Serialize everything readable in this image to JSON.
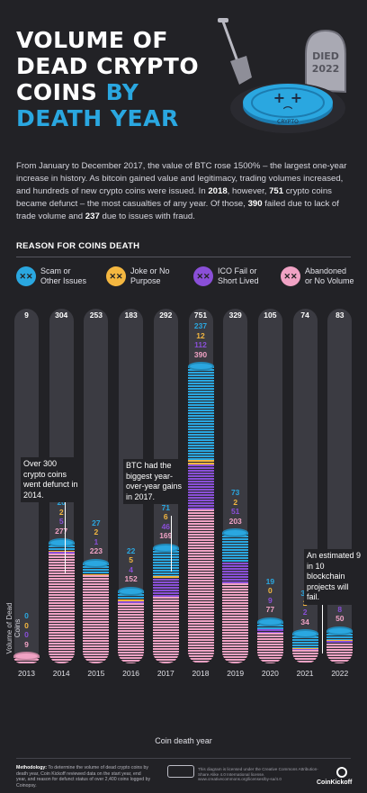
{
  "title": {
    "line1": "VOLUME OF",
    "line2": "DEAD CRYPTO",
    "line3": "COINS",
    "line3b": "BY",
    "line4": "DEATH YEAR"
  },
  "illustration": {
    "tombstone_text1": "DIED",
    "tombstone_text2": "2022",
    "coin_label": "CRYPTO"
  },
  "intro": {
    "p1": "From January to December 2017, the value of BTC rose 1500% – the largest one-year increase in history. As bitcoin gained value and legitimacy, trading volumes increased, and hundreds of new crypto coins were issued. In ",
    "y2018": "2018",
    "p2": ", however, ",
    "n751": "751",
    "p3": " crypto coins became defunct – the most casualties of any year. Of those, ",
    "n390": "390",
    "p4": " failed due to lack of trade volume and ",
    "n237": "237",
    "p5": " due to issues with fraud."
  },
  "section_title": "REASON FOR COINS DEATH",
  "legend": [
    {
      "label": "Scam or Other Issues",
      "color": "#2aa7e0",
      "icon": "dizzy-face-icon"
    },
    {
      "label": "Joke or No Purpose",
      "color": "#f4b740",
      "icon": "dizzy-face-icon"
    },
    {
      "label": "ICO Fail or Short Lived",
      "color": "#8a4fd8",
      "icon": "dizzy-face-icon"
    },
    {
      "label": "Abandoned or No Volume",
      "color": "#f0a2c4",
      "icon": "dizzy-face-icon"
    }
  ],
  "chart_data": {
    "type": "bar",
    "stacked": true,
    "title": "",
    "xlabel": "Coin death year",
    "ylabel": "Volume of Dead Coins",
    "categories": [
      "2013",
      "2014",
      "2015",
      "2016",
      "2017",
      "2018",
      "2019",
      "2020",
      "2021",
      "2022"
    ],
    "totals": [
      9,
      304,
      253,
      183,
      292,
      751,
      329,
      105,
      74,
      83
    ],
    "series": [
      {
        "name": "Abandoned or No Volume",
        "color": "#f0a2c4",
        "values": [
          9,
          277,
          223,
          152,
          169,
          390,
          203,
          77,
          34,
          50
        ]
      },
      {
        "name": "ICO Fail or Short Lived",
        "color": "#8a4fd8",
        "values": [
          0,
          5,
          1,
          4,
          46,
          112,
          51,
          9,
          2,
          8
        ]
      },
      {
        "name": "Joke or No Purpose",
        "color": "#f4b740",
        "values": [
          0,
          2,
          2,
          5,
          6,
          12,
          2,
          0,
          2,
          2
        ]
      },
      {
        "name": "Scam or Other Issues",
        "color": "#2aa7e0",
        "values": [
          0,
          20,
          27,
          22,
          71,
          237,
          73,
          19,
          36,
          23
        ]
      }
    ],
    "ylim": [
      0,
      751
    ]
  },
  "annotations": [
    {
      "text": "Over 300 crypto coins went defunct in 2014."
    },
    {
      "text": "BTC had the biggest year-over-year gains in 2017."
    },
    {
      "text": "An estimated 9 in 10 blockchain projects will fail."
    }
  ],
  "footer": {
    "methodology_label": "Methodology:",
    "methodology_text": "To determine the volume of dead crypto coins by death year, Coin Kickoff reviewed data on the start year, end year, and reason for defunct status of over 2,400 coins logged by Coinopsy.",
    "license": "This diagram is licensed under the Creative Commons Attribution-Share Alike 4.0 International license. www.creativecommons.org/licenses/by-sa/4.0",
    "brand": "CoinKickoff"
  }
}
